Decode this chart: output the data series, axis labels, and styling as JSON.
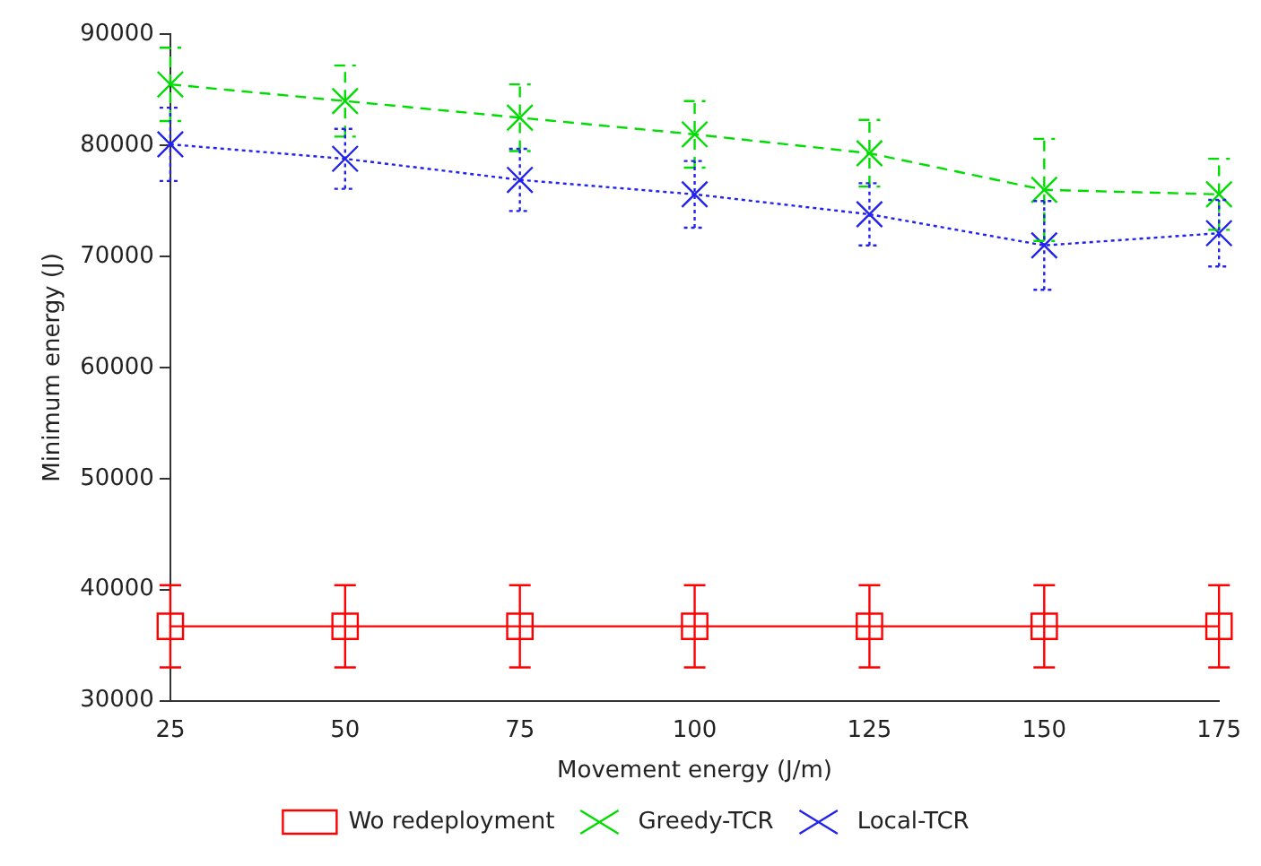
{
  "chart_data": {
    "type": "line",
    "xlabel": "Movement energy (J/m)",
    "ylabel": "Minimum energy (J)",
    "x": [
      25,
      50,
      75,
      100,
      125,
      150,
      175
    ],
    "xlim": [
      25,
      175
    ],
    "xticks": [
      25,
      50,
      75,
      100,
      125,
      150,
      175
    ],
    "ylim": [
      30000,
      90000
    ],
    "yticks": [
      30000,
      40000,
      50000,
      60000,
      70000,
      80000,
      90000
    ],
    "grid": false,
    "legend": "bottom",
    "series": [
      {
        "name": "Wo redeployment",
        "color": "#ff0000",
        "marker": "square",
        "line_style": "solid",
        "values": [
          36700,
          36700,
          36700,
          36700,
          36700,
          36700,
          36700
        ],
        "errors": [
          3700,
          3700,
          3700,
          3700,
          3700,
          3700,
          3700
        ]
      },
      {
        "name": "Greedy-TCR",
        "color": "#00dd00",
        "marker": "cross",
        "line_style": "dashed",
        "values": [
          85500,
          84000,
          82500,
          81000,
          79300,
          76000,
          75600
        ],
        "errors": [
          3300,
          3200,
          3000,
          3000,
          3000,
          4600,
          3200
        ]
      },
      {
        "name": "Local-TCR",
        "color": "#2222ee",
        "marker": "cross",
        "line_style": "dotted",
        "values": [
          80100,
          78800,
          76900,
          75600,
          73800,
          71000,
          72100
        ],
        "errors": [
          3300,
          2700,
          2800,
          3000,
          2800,
          4000,
          3000
        ]
      }
    ]
  }
}
